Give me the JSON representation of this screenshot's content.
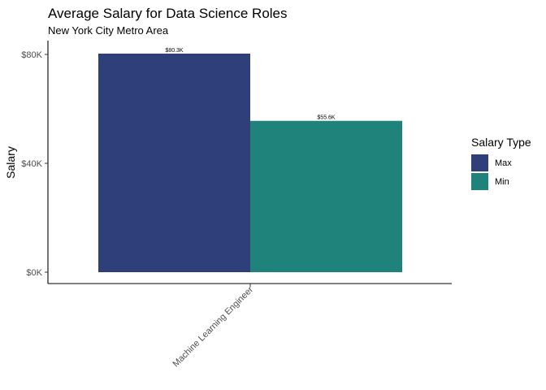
{
  "chart_data": {
    "type": "bar",
    "title": "Average Salary for Data Science Roles",
    "subtitle": "New York City Metro Area",
    "xlabel": "",
    "ylabel": "Salary",
    "categories": [
      "Machine Learning Engineer"
    ],
    "series": [
      {
        "name": "Max",
        "values": [
          80300
        ],
        "labels": [
          "$80.3K"
        ],
        "color": "#2e3f7a"
      },
      {
        "name": "Min",
        "values": [
          55600
        ],
        "labels": [
          "$55.6K"
        ],
        "color": "#1f837b"
      }
    ],
    "ylim": [
      0,
      80300
    ],
    "yticks": [
      {
        "value": 0,
        "label": "$0K"
      },
      {
        "value": 40000,
        "label": "$40K"
      },
      {
        "value": 80000,
        "label": "$80K"
      }
    ],
    "grid": false,
    "legend": {
      "title": "Salary Type",
      "position": "right"
    }
  }
}
